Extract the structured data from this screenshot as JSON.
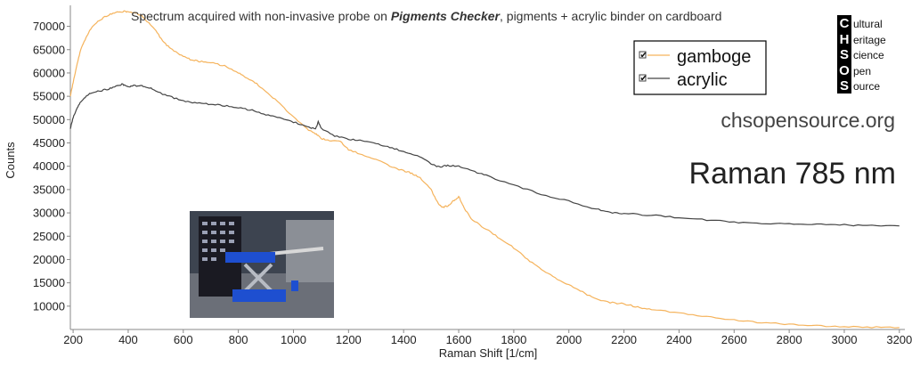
{
  "chart_data": {
    "type": "line",
    "title_prefix": "Spectrum acquired with non-invasive probe on ",
    "title_bold": "Pigments Checker",
    "title_suffix": ", pigments + acrylic binder on cardboard",
    "xlabel": "Raman Shift [1/cm]",
    "ylabel": "Counts",
    "xlim": [
      190,
      3220
    ],
    "ylim": [
      5000,
      74500
    ],
    "xticks": [
      200,
      400,
      600,
      800,
      1000,
      1200,
      1400,
      1600,
      1800,
      2000,
      2200,
      2400,
      2600,
      2800,
      3000,
      3200
    ],
    "yticks": [
      10000,
      15000,
      20000,
      25000,
      30000,
      35000,
      40000,
      45000,
      50000,
      55000,
      60000,
      65000,
      70000
    ],
    "legend_position": "top-right",
    "grid": false,
    "series": [
      {
        "name": "gamboge",
        "color": "#f5b35c",
        "x": [
          190,
          200,
          215,
          230,
          250,
          270,
          300,
          330,
          360,
          390,
          410,
          430,
          450,
          470,
          500,
          530,
          560,
          600,
          630,
          660,
          700,
          750,
          800,
          830,
          860,
          900,
          950,
          1000,
          1050,
          1080,
          1100,
          1130,
          1170,
          1200,
          1250,
          1300,
          1350,
          1400,
          1430,
          1460,
          1500,
          1520,
          1540,
          1560,
          1580,
          1600,
          1620,
          1650,
          1700,
          1750,
          1800,
          1850,
          1900,
          1950,
          2000,
          2050,
          2100,
          2150,
          2200,
          2250,
          2300,
          2400,
          2500,
          2600,
          2700,
          2800,
          2900,
          3000,
          3100,
          3200
        ],
        "values": [
          55000,
          58000,
          62000,
          65500,
          68000,
          70000,
          71500,
          72500,
          73000,
          73200,
          73000,
          72800,
          72200,
          71000,
          69000,
          66500,
          65000,
          63500,
          62800,
          62500,
          62200,
          61500,
          60000,
          59000,
          58000,
          56000,
          53500,
          50500,
          48000,
          47000,
          46000,
          45500,
          45300,
          43500,
          42500,
          41500,
          40000,
          39000,
          38500,
          37500,
          35000,
          32500,
          31200,
          31500,
          32500,
          33500,
          31000,
          28500,
          26500,
          24500,
          22500,
          20000,
          18000,
          16000,
          14500,
          13000,
          11500,
          10800,
          10500,
          9800,
          9300,
          8500,
          7800,
          7000,
          6500,
          6100,
          5800,
          5600,
          5500,
          5400
        ]
      },
      {
        "name": "acrylic",
        "color": "#444444",
        "x": [
          190,
          200,
          215,
          230,
          250,
          270,
          300,
          330,
          360,
          380,
          400,
          420,
          450,
          480,
          500,
          550,
          600,
          650,
          700,
          750,
          800,
          850,
          900,
          950,
          1000,
          1050,
          1080,
          1090,
          1100,
          1150,
          1200,
          1250,
          1300,
          1350,
          1400,
          1450,
          1500,
          1530,
          1560,
          1600,
          1650,
          1700,
          1800,
          1900,
          2000,
          2100,
          2150,
          2200,
          2300,
          2400,
          2500,
          2600,
          2700,
          2800,
          2900,
          3000,
          3100,
          3200
        ],
        "values": [
          48000,
          50500,
          52500,
          54000,
          55200,
          55800,
          56200,
          56600,
          57200,
          57600,
          57000,
          57300,
          57200,
          56800,
          56000,
          55000,
          54000,
          53500,
          53300,
          53000,
          52500,
          52000,
          51000,
          50500,
          49500,
          48500,
          48000,
          49500,
          48200,
          46500,
          45800,
          45500,
          44800,
          44000,
          43200,
          42300,
          40500,
          39800,
          40200,
          40000,
          39000,
          38000,
          36000,
          34000,
          32500,
          30800,
          30100,
          29900,
          29500,
          29000,
          28500,
          28000,
          27800,
          27600,
          27500,
          27400,
          27300,
          27200
        ]
      }
    ]
  },
  "logo": {
    "letters": [
      "C",
      "H",
      "S",
      "O",
      "S"
    ],
    "words": [
      "ultural",
      "eritage",
      "cience",
      "pen",
      "ource"
    ]
  },
  "brand_url": "chsopensource.org",
  "method": "Raman 785 nm",
  "photo": {
    "description_icon": "probe-on-pigment-checker-photo"
  }
}
